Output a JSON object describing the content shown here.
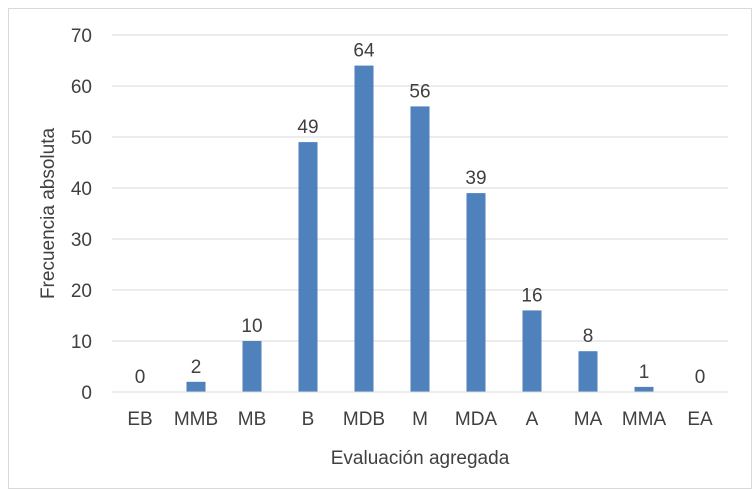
{
  "chart_data": {
    "type": "bar",
    "categories": [
      "EB",
      "MMB",
      "MB",
      "B",
      "MDB",
      "M",
      "MDA",
      "A",
      "MA",
      "MMA",
      "EA"
    ],
    "values": [
      0,
      2,
      10,
      49,
      64,
      56,
      39,
      16,
      8,
      1,
      0
    ],
    "title": "",
    "xlabel": "Evaluación agregada",
    "ylabel": "Frecuencia absoluta",
    "ylim": [
      0,
      70
    ],
    "yticks": [
      0,
      10,
      20,
      30,
      40,
      50,
      60,
      70
    ],
    "grid": true,
    "legend": "none",
    "data_labels": true,
    "colors": {
      "bar": "#4F81BD",
      "grid": "#d9d9d9",
      "text": "#404040"
    }
  }
}
